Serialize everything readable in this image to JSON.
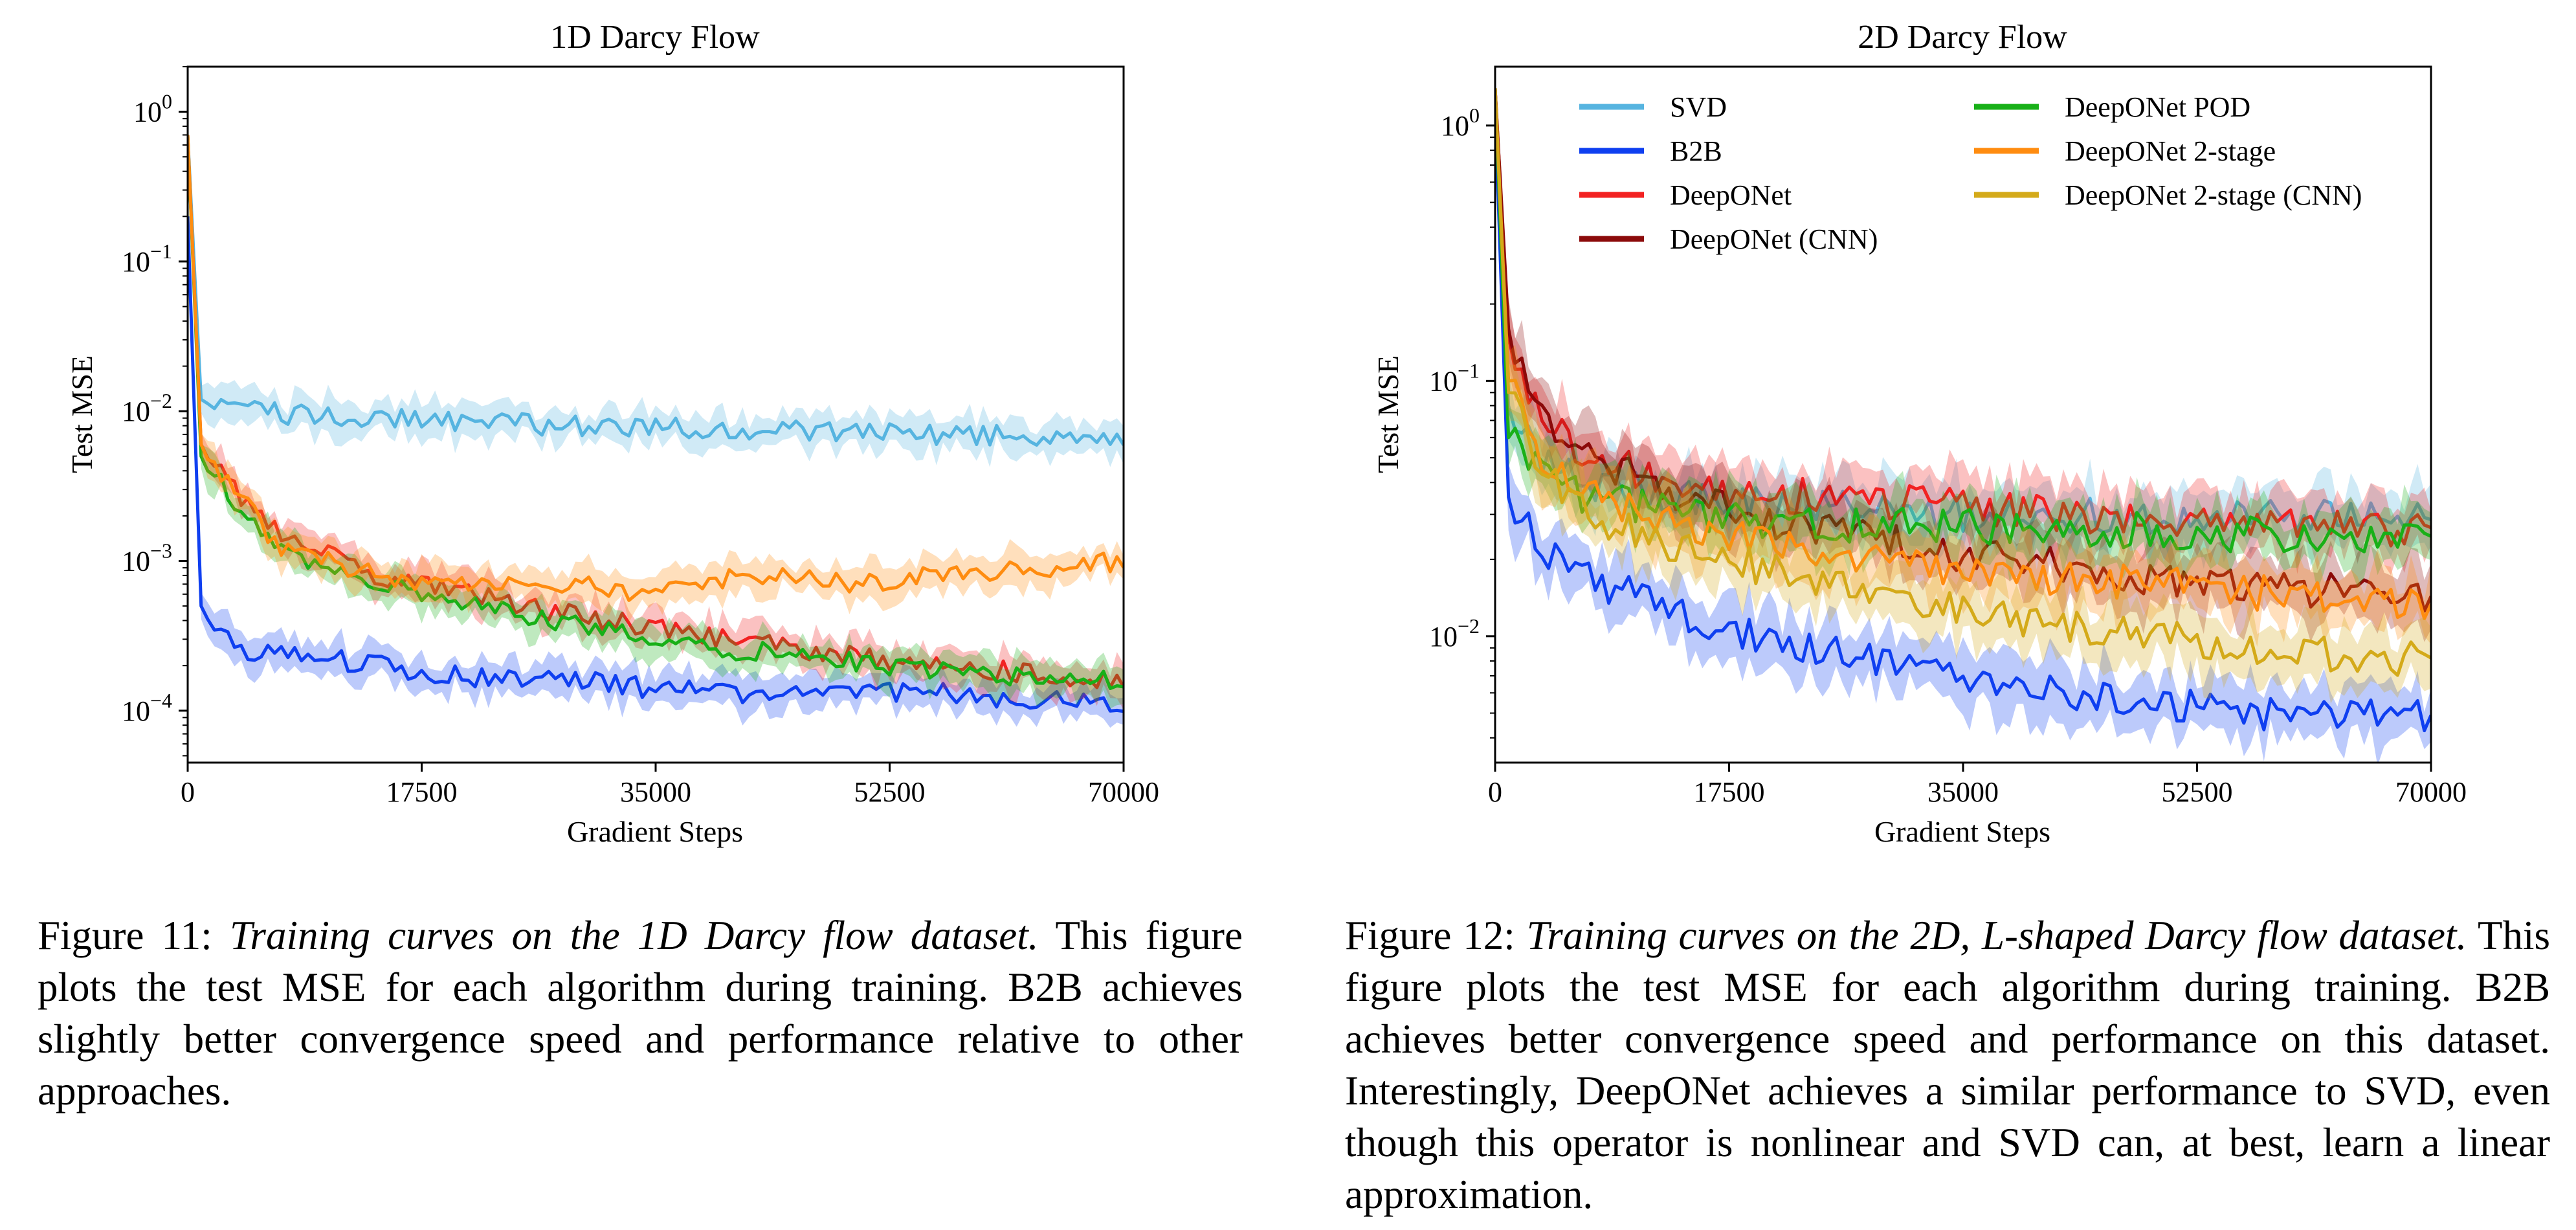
{
  "charts": [
    {
      "title": "1D Darcy Flow",
      "xlabel": "Gradient Steps",
      "ylabel": "Test MSE",
      "xticks": [
        "0",
        "17500",
        "35000",
        "52500",
        "70000"
      ],
      "yticks": [
        {
          "base": "10",
          "exp": "0"
        },
        {
          "base": "10",
          "exp": "−1"
        },
        {
          "base": "10",
          "exp": "−2"
        },
        {
          "base": "10",
          "exp": "−3"
        },
        {
          "base": "10",
          "exp": "−4"
        }
      ]
    },
    {
      "title": "2D Darcy Flow",
      "xlabel": "Gradient Steps",
      "ylabel": "Test MSE",
      "xticks": [
        "0",
        "17500",
        "35000",
        "52500",
        "70000"
      ],
      "yticks": [
        {
          "base": "10",
          "exp": "0"
        },
        {
          "base": "10",
          "exp": "−1"
        },
        {
          "base": "10",
          "exp": "−2"
        }
      ],
      "legend": [
        "SVD",
        "B2B",
        "DeepONet",
        "DeepONet (CNN)",
        "DeepONet POD",
        "DeepONet 2-stage",
        "DeepONet 2-stage (CNN)"
      ]
    }
  ],
  "chart_data": [
    {
      "type": "line",
      "title": "1D Darcy Flow",
      "xlabel": "Gradient Steps",
      "ylabel": "Test MSE",
      "xlim": [
        0,
        70000
      ],
      "ylim": [
        4.5e-05,
        2.0
      ],
      "yscale": "log",
      "x": [
        0,
        1000,
        3500,
        7000,
        14000,
        21000,
        28000,
        35000,
        42000,
        49000,
        56000,
        63000,
        70000
      ],
      "series": [
        {
          "name": "SVD",
          "color": "#56b4e0",
          "values": [
            0.7,
            0.012,
            0.0115,
            0.0095,
            0.009,
            0.0085,
            0.008,
            0.0078,
            0.0075,
            0.0072,
            0.007,
            0.0068,
            0.0066
          ]
        },
        {
          "name": "B2B",
          "color": "#0f3ff0",
          "values": [
            0.2,
            0.0005,
            0.00025,
            0.00025,
            0.0002,
            0.00017,
            0.00016,
            0.00014,
            0.00013,
            0.00013,
            0.00013,
            0.00012,
            0.00011
          ]
        },
        {
          "name": "DeepONet",
          "color": "#f22222",
          "values": [
            0.7,
            0.006,
            0.003,
            0.0015,
            0.0008,
            0.0006,
            0.00045,
            0.00035,
            0.00028,
            0.00024,
            0.0002,
            0.00018,
            0.00016
          ]
        },
        {
          "name": "DeepONet POD",
          "color": "#18b018",
          "values": [
            0.7,
            0.005,
            0.0025,
            0.0012,
            0.0007,
            0.0005,
            0.0004,
            0.0003,
            0.00025,
            0.00021,
            0.00019,
            0.00017,
            0.00016
          ]
        },
        {
          "name": "DeepONet 2-stage",
          "color": "#ff8c10",
          "values": [
            0.7,
            0.006,
            0.003,
            0.0012,
            0.0008,
            0.0007,
            0.0007,
            0.0006,
            0.0008,
            0.0007,
            0.0008,
            0.0009,
            0.001
          ]
        }
      ]
    },
    {
      "type": "line",
      "title": "2D Darcy Flow",
      "xlabel": "Gradient Steps",
      "ylabel": "Test MSE",
      "xlim": [
        0,
        70000
      ],
      "ylim": [
        0.0032,
        1.7
      ],
      "yscale": "log",
      "legend_position": "upper",
      "x": [
        0,
        1000,
        3500,
        7000,
        14000,
        21000,
        28000,
        35000,
        42000,
        49000,
        56000,
        63000,
        70000
      ],
      "series": [
        {
          "name": "SVD",
          "color": "#56b4e0",
          "values": [
            1.4,
            0.08,
            0.05,
            0.04,
            0.035,
            0.033,
            0.031,
            0.03,
            0.03,
            0.029,
            0.029,
            0.029,
            0.028
          ]
        },
        {
          "name": "B2B",
          "color": "#0f3ff0",
          "values": [
            1.2,
            0.035,
            0.022,
            0.017,
            0.012,
            0.0095,
            0.008,
            0.007,
            0.006,
            0.0055,
            0.005,
            0.005,
            0.0048
          ]
        },
        {
          "name": "DeepONet",
          "color": "#f22222",
          "values": [
            1.4,
            0.15,
            0.07,
            0.05,
            0.04,
            0.036,
            0.034,
            0.032,
            0.03,
            0.029,
            0.028,
            0.027,
            0.026
          ]
        },
        {
          "name": "DeepONet (CNN)",
          "color": "#8b0a0a",
          "values": [
            1.4,
            0.16,
            0.075,
            0.05,
            0.035,
            0.028,
            0.024,
            0.021,
            0.019,
            0.017,
            0.016,
            0.015,
            0.014
          ]
        },
        {
          "name": "DeepONet POD",
          "color": "#18b018",
          "values": [
            1.4,
            0.06,
            0.042,
            0.035,
            0.03,
            0.028,
            0.027,
            0.027,
            0.026,
            0.026,
            0.025,
            0.025,
            0.024
          ]
        },
        {
          "name": "DeepONet 2-stage",
          "color": "#ff8c10",
          "values": [
            1.4,
            0.1,
            0.05,
            0.035,
            0.027,
            0.023,
            0.02,
            0.018,
            0.017,
            0.016,
            0.015,
            0.014,
            0.013
          ]
        },
        {
          "name": "DeepONet 2-stage (CNN)",
          "color": "#d4aa1a",
          "values": [
            1.4,
            0.09,
            0.045,
            0.03,
            0.022,
            0.018,
            0.015,
            0.013,
            0.011,
            0.01,
            0.009,
            0.0085,
            0.008
          ]
        }
      ]
    }
  ],
  "captions": [
    {
      "label": "Figure 11:",
      "title": "Training curves on the 1D Darcy flow dataset.",
      "text": "This figure plots the test MSE for each algorithm during training. B2B achieves slightly better convergence speed and performance relative to other approaches."
    },
    {
      "label": "Figure 12:",
      "title": "Training curves on the 2D, L-shaped Darcy flow dataset.",
      "text": "This figure plots the test MSE for each algorithm during training. B2B achieves better convergence speed and performance on this dataset. Interestingly, DeepONet achieves a similar performance to SVD, even though this operator is nonlinear and SVD can, at best, learn a linear approximation."
    }
  ]
}
